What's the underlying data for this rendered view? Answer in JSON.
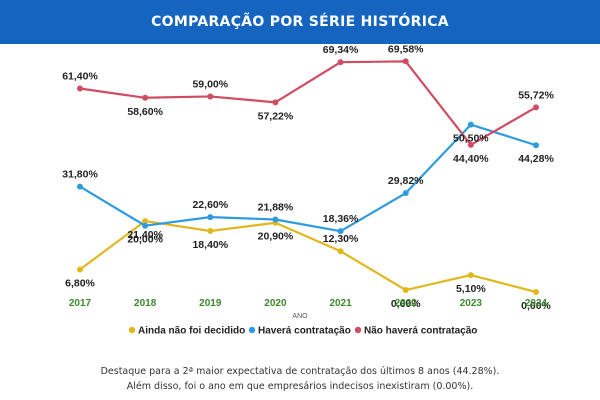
{
  "header": {
    "title": "COMPARAÇÃO POR SÉRIE HISTÓRICA"
  },
  "colors": {
    "header_bg": "#1565c0",
    "series": [
      "#e0b81c",
      "#2e9be0",
      "#d04c62"
    ],
    "year_label": "#3a8a2a"
  },
  "chart_data": {
    "type": "line",
    "title": "",
    "xlabel": "ANO",
    "ylabel": "",
    "x": [
      "2017",
      "2018",
      "2019",
      "2020",
      "2021",
      "2022",
      "2023",
      "2024"
    ],
    "ylim": [
      0,
      70
    ],
    "grid": false,
    "legend_position": "bottom",
    "series": [
      {
        "name": "Ainda não foi decidido",
        "values": [
          6.8,
          21.4,
          18.4,
          20.9,
          12.3,
          0.6,
          5.1,
          0.0
        ],
        "labels": [
          "6,80%",
          "21,40%",
          "18,40%",
          "20,90%",
          "12,30%",
          "0,60%",
          "5,10%",
          "0,00%"
        ]
      },
      {
        "name": "Haverá contratação",
        "values": [
          31.8,
          20.0,
          22.6,
          21.88,
          18.36,
          29.82,
          50.5,
          44.28
        ],
        "labels": [
          "31,80%",
          "20,00%",
          "22,60%",
          "21,88%",
          "18,36%",
          "29,82%",
          "50,50%",
          "44,28%"
        ]
      },
      {
        "name": "Não haverá contratação",
        "values": [
          61.4,
          58.6,
          59.0,
          57.22,
          69.34,
          69.58,
          44.4,
          55.72
        ],
        "labels": [
          "61,40%",
          "58,60%",
          "59,00%",
          "57,22%",
          "69,34%",
          "69,58%",
          "44,40%",
          "55,72%"
        ]
      }
    ]
  },
  "footnote": {
    "line1": "Destaque para a 2ª maior expectativa de contratação dos últimos 8 anos (44.28%).",
    "line2": "Além disso, foi o ano em que empresários indecisos inexistiram (0.00%)."
  }
}
